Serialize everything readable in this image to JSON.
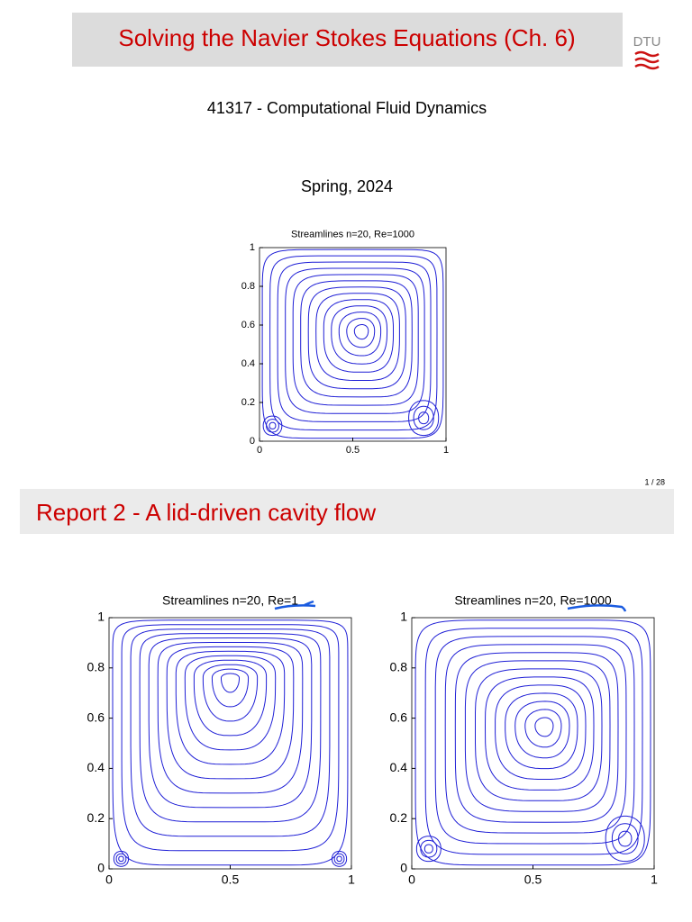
{
  "slide1": {
    "title": "Solving the Navier Stokes Equations (Ch. 6)",
    "logo": "DTU",
    "course": "41317 - Computational Fluid Dynamics",
    "term": "Spring, 2024",
    "figure": {
      "title": "Streamlines n=20, Re=1000",
      "xlim": [
        0,
        1
      ],
      "ylim": [
        0,
        1
      ],
      "xticks": [
        0,
        0.5,
        1
      ],
      "yticks": [
        0,
        0.2,
        0.4,
        0.6,
        0.8,
        1
      ]
    }
  },
  "page_number": "1 / 28",
  "slide2": {
    "title": "Report 2 - A lid-driven cavity flow",
    "figures": [
      {
        "title": "Streamlines n=20, Re=1",
        "xlim": [
          0,
          1
        ],
        "ylim": [
          0,
          1
        ],
        "xticks": [
          0,
          0.5,
          1
        ],
        "yticks": [
          0,
          0.2,
          0.4,
          0.6,
          0.8,
          1
        ]
      },
      {
        "title": "Streamlines n=20, Re=1000",
        "xlim": [
          0,
          1
        ],
        "ylim": [
          0,
          1
        ],
        "xticks": [
          0,
          0.5,
          1
        ],
        "yticks": [
          0,
          0.2,
          0.4,
          0.6,
          0.8,
          1
        ]
      }
    ]
  }
}
